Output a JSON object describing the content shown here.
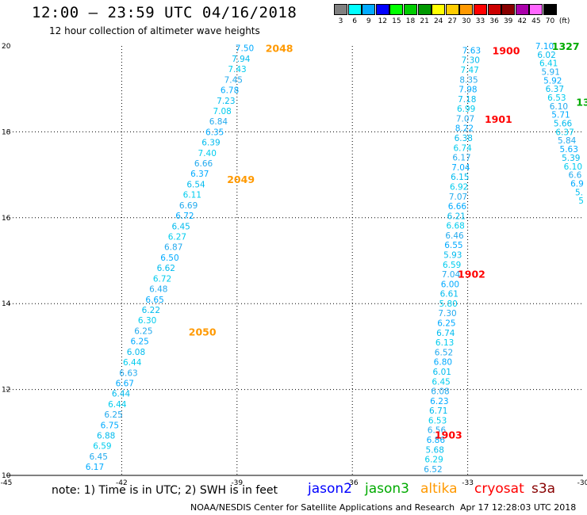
{
  "header": {
    "title": "12:00 — 23:59 UTC 04/16/2018",
    "subtitle": "12 hour collection of altimeter wave heights"
  },
  "legend": {
    "unit": "(ft)",
    "bins": [
      {
        "label": "3",
        "color": "#808080"
      },
      {
        "label": "6",
        "color": "#00ffff"
      },
      {
        "label": "9",
        "color": "#00aaff"
      },
      {
        "label": "12",
        "color": "#0000ff"
      },
      {
        "label": "15",
        "color": "#00ff00"
      },
      {
        "label": "18",
        "color": "#00cc00"
      },
      {
        "label": "21",
        "color": "#009900"
      },
      {
        "label": "24",
        "color": "#ffff00"
      },
      {
        "label": "27",
        "color": "#ffcc00"
      },
      {
        "label": "30",
        "color": "#ff9900"
      },
      {
        "label": "33",
        "color": "#ff0000"
      },
      {
        "label": "36",
        "color": "#cc0000"
      },
      {
        "label": "39",
        "color": "#880000"
      },
      {
        "label": "42",
        "color": "#aa00aa"
      },
      {
        "label": "45",
        "color": "#ff66ff"
      },
      {
        "label": "70",
        "color": "#000000"
      }
    ]
  },
  "axes": {
    "lon_ticks": [
      -45,
      -42,
      -39,
      -36,
      -33,
      -30
    ],
    "lat_ticks": [
      10,
      12,
      14,
      16,
      18,
      20
    ],
    "lon_range": [
      -45,
      -30
    ],
    "lat_range": [
      10,
      20
    ]
  },
  "tracks": [
    {
      "name": "altika",
      "color": "#ff9900",
      "start": {
        "lon": -38.8,
        "lat": 19.95
      },
      "end": {
        "lon": -42.7,
        "lat": 10.2
      },
      "values": [
        "7.50",
        "7.94",
        "7.43",
        "7.45",
        "6.78",
        "7.23",
        "7.08",
        "6.84",
        "6.35",
        "6.39",
        "7.40",
        "6.66",
        "6.37",
        "6.54",
        "6.11",
        "6.69",
        "6.72",
        "6.45",
        "6.27",
        "6.87",
        "6.50",
        "6.62",
        "6.72",
        "6.48",
        "6.65",
        "6.22",
        "6.30",
        "6.25",
        "6.25",
        "6.08",
        "6.44",
        "6.63",
        "6.67",
        "6.44",
        "6.44",
        "6.25",
        "6.75",
        "6.88",
        "6.59",
        "6.45",
        "6.17"
      ],
      "times": [
        {
          "label": "2048",
          "lon": -37.9,
          "lat": 19.95
        },
        {
          "label": "2049",
          "lon": -38.9,
          "lat": 16.9
        },
        {
          "label": "2050",
          "lon": -39.9,
          "lat": 13.35
        }
      ]
    },
    {
      "name": "cryosat",
      "color": "#ff0000",
      "start": {
        "lon": -32.9,
        "lat": 19.9
      },
      "end": {
        "lon": -33.9,
        "lat": 10.15
      },
      "values": [
        "7.63",
        "7.30",
        "7.47",
        "8.35",
        "7.98",
        "7.18",
        "6.99",
        "7.07",
        "8.22",
        "6.38",
        "6.74",
        "6.17",
        "7.04",
        "6.15",
        "6.92",
        "7.07",
        "6.66",
        "6.21",
        "6.68",
        "6.46",
        "6.55",
        "5.93",
        "6.59",
        "7.04",
        "6.00",
        "6.61",
        "5.80",
        "7.30",
        "6.25",
        "6.74",
        "6.13",
        "6.52",
        "6.80",
        "6.01",
        "6.45",
        "6.08",
        "6.23",
        "6.71",
        "6.53",
        "6.56",
        "6.86",
        "5.68",
        "6.29",
        "6.52"
      ],
      "times": [
        {
          "label": "1900",
          "lon": -32.0,
          "lat": 19.9
        },
        {
          "label": "1901",
          "lon": -32.2,
          "lat": 18.3
        },
        {
          "label": "1902",
          "lon": -32.9,
          "lat": 14.7
        },
        {
          "label": "1903",
          "lon": -33.5,
          "lat": 10.95
        }
      ]
    },
    {
      "name": "jason3",
      "color": "#00aa00",
      "start": {
        "lon": -31.0,
        "lat": 20.0
      },
      "end": {
        "lon": -30.05,
        "lat": 16.4
      },
      "values": [
        "7.10",
        "6.02",
        "6.41",
        "5.91",
        "5.92",
        "6.37",
        "6.53",
        "6.10",
        "5.71",
        "5.66",
        "6.37",
        "5.84",
        "5.63",
        "5.39",
        "6.10",
        "6.6",
        "6.9",
        "5.",
        "5"
      ],
      "times": [
        {
          "label": "1327",
          "lon": -30.45,
          "lat": 20.0
        },
        {
          "label": "13",
          "lon": -30.0,
          "lat": 18.7
        }
      ]
    }
  ],
  "footer": {
    "note": "note:  1) Time is in UTC; 2) SWH is in feet",
    "satellites": [
      {
        "label": "jason2",
        "color": "#0000ff"
      },
      {
        "label": "jason3",
        "color": "#00aa00"
      },
      {
        "label": "altika",
        "color": "#ff9900"
      },
      {
        "label": "cryosat",
        "color": "#ff0000"
      },
      {
        "label": "s3a",
        "color": "#880000"
      }
    ],
    "credit": "NOAA/NESDIS Center for Satellite Applications and Research",
    "timestamp": "Apr 17 12:28:03 UTC 2018"
  }
}
